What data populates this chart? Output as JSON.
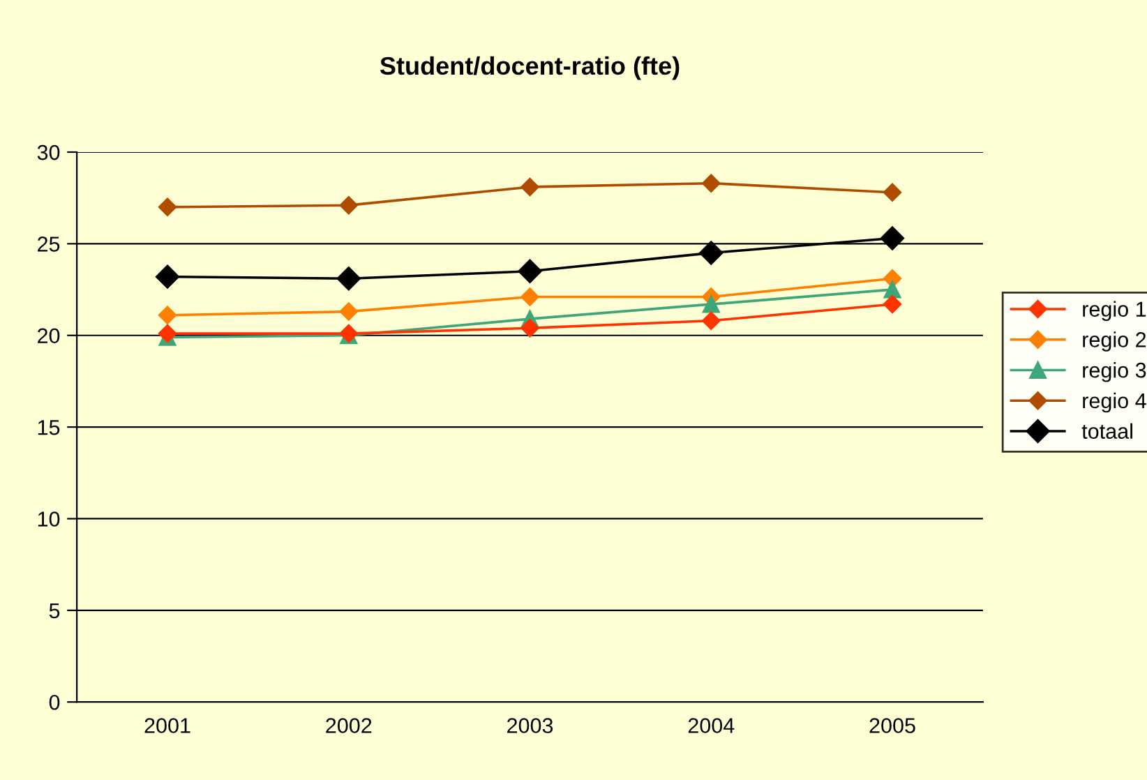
{
  "chart_data": {
    "type": "line",
    "title": "Student/docent-ratio (fte)",
    "categories": [
      "2001",
      "2002",
      "2003",
      "2004",
      "2005"
    ],
    "series": [
      {
        "name": "regio 1",
        "color": "#ff3300",
        "marker": "diamond",
        "values": [
          20.1,
          20.1,
          20.4,
          20.8,
          21.7
        ]
      },
      {
        "name": "regio 2",
        "color": "#ff8000",
        "marker": "diamond",
        "values": [
          21.1,
          21.3,
          22.1,
          22.1,
          23.1
        ]
      },
      {
        "name": "regio 3",
        "color": "#3fa67a",
        "marker": "triangle",
        "values": [
          19.9,
          20.0,
          20.9,
          21.7,
          22.5
        ]
      },
      {
        "name": "regio 4",
        "color": "#b04c00",
        "marker": "diamond",
        "values": [
          27.0,
          27.1,
          28.1,
          28.3,
          27.8
        ]
      },
      {
        "name": "totaal",
        "color": "#000000",
        "marker": "diamond",
        "values": [
          23.2,
          23.1,
          23.5,
          24.5,
          25.3
        ]
      }
    ],
    "ylim": [
      0,
      30
    ],
    "yticks": [
      0,
      5,
      10,
      15,
      20,
      25,
      30
    ],
    "grid": "y",
    "legend": "right"
  }
}
